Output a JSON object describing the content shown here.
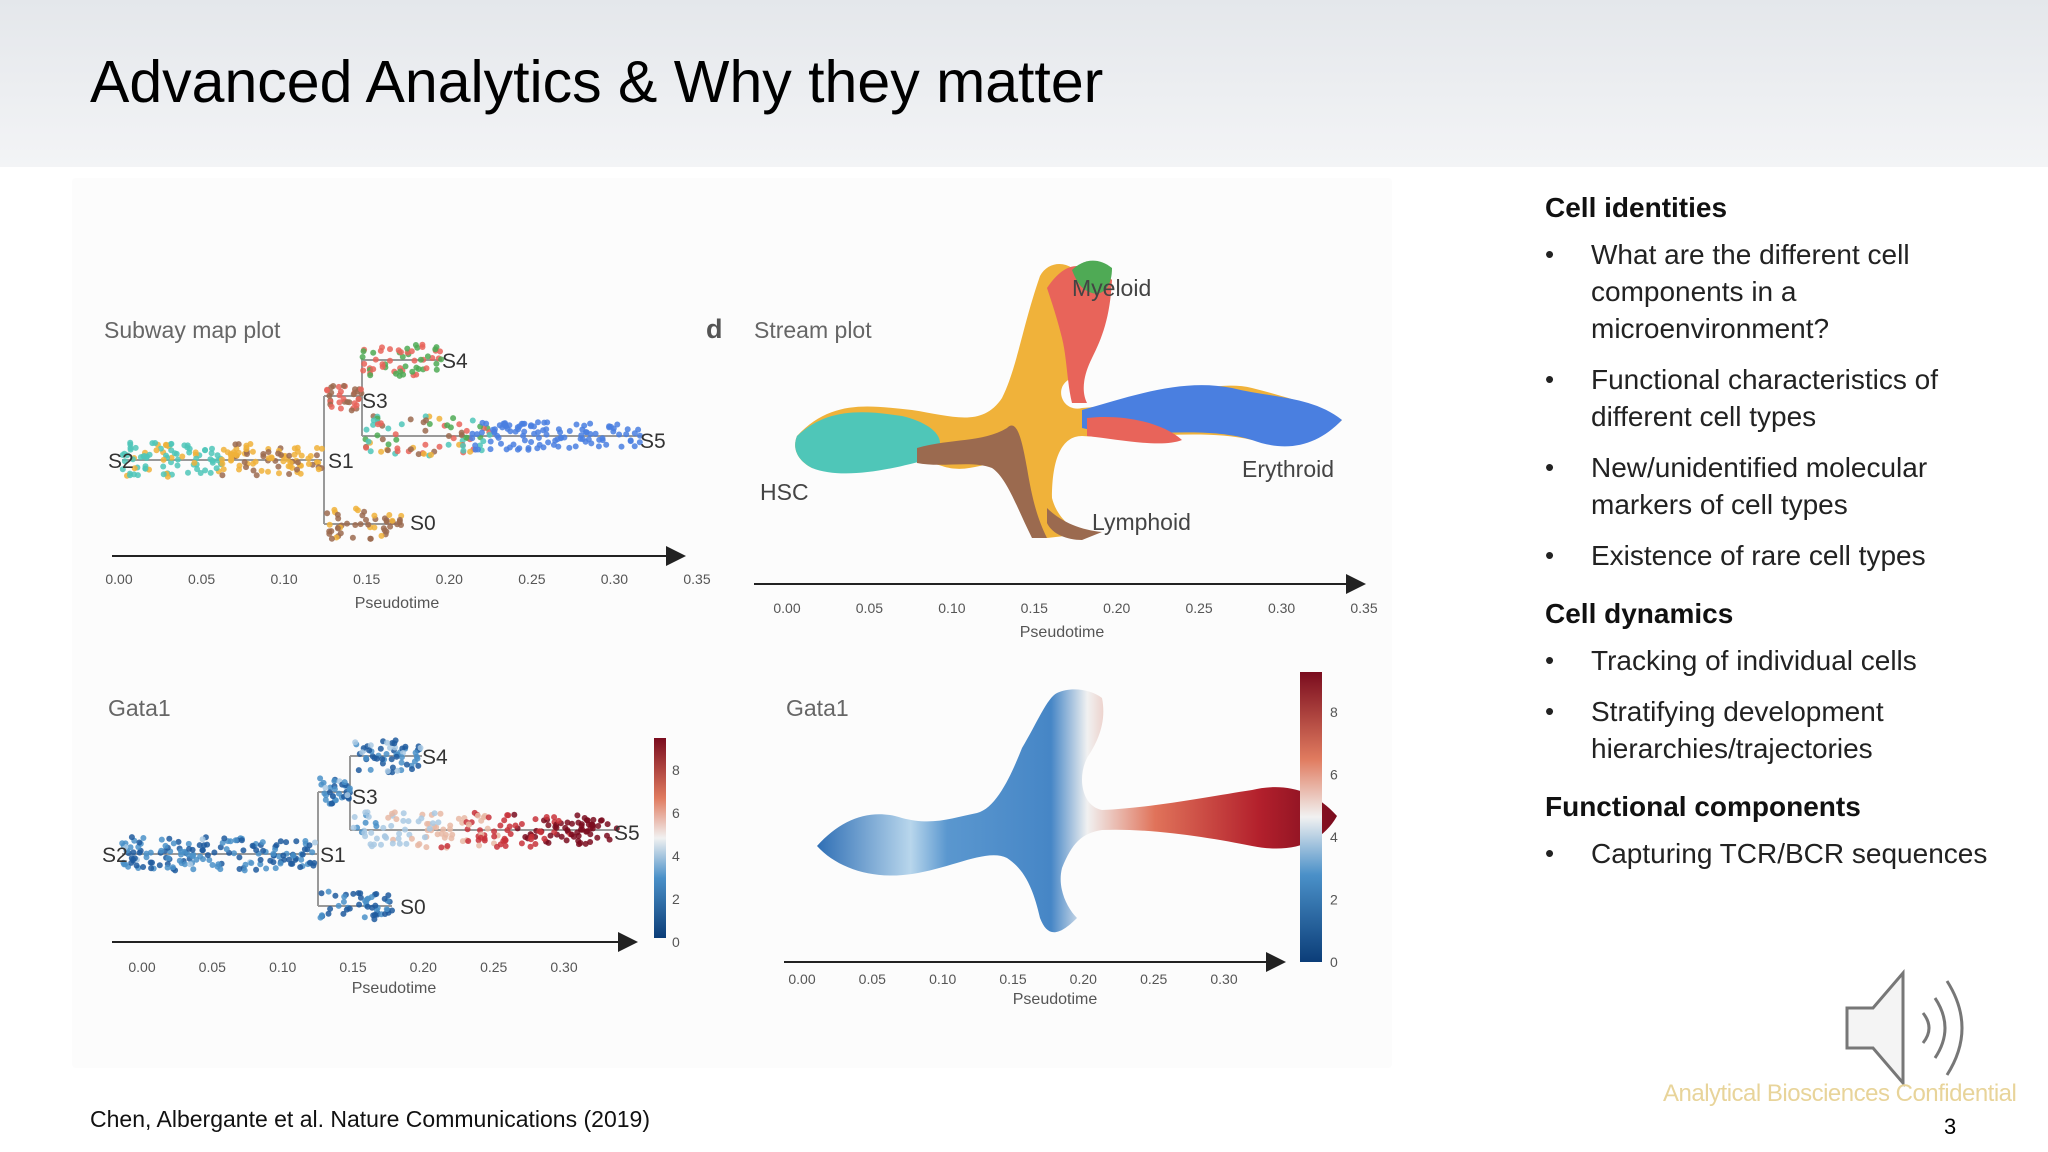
{
  "slide": {
    "title": "Advanced Analytics & Why they matter",
    "citation": "Chen, Albergante et al. Nature Communications (2019)",
    "watermark": "Analytical Biosciences Confidential",
    "page_number": "3"
  },
  "figure": {
    "subway_title": "Subway map plot",
    "stream_letter": "d",
    "stream_title": "Stream plot",
    "gata1_left_title": "Gata1",
    "gata1_right_title": "Gata1",
    "axis_label": "Pseudotime",
    "nodes": [
      "S0",
      "S1",
      "S2",
      "S3",
      "S4",
      "S5"
    ],
    "branches": {
      "myeloid": "Myeloid",
      "erythroid": "Erythroid",
      "lymphoid": "Lymphoid",
      "hsc": "HSC"
    },
    "ticks_a": [
      "0.00",
      "0.05",
      "0.10",
      "0.15",
      "0.20",
      "0.25",
      "0.30",
      "0.35"
    ],
    "ticks_c": [
      "0.00",
      "0.05",
      "0.10",
      "0.15",
      "0.20",
      "0.25",
      "0.30"
    ],
    "colorbar_ticks": [
      "0",
      "2",
      "4",
      "6",
      "8"
    ],
    "colors": {
      "teal": "#4fc6b8",
      "orange": "#f0b23a",
      "brown": "#9b6a4f",
      "red": "#e8645a",
      "green": "#4faa55",
      "blue": "#4a7fe0",
      "lowblue": "#2f6fb5",
      "highred": "#7a0c1e"
    }
  },
  "right_panel": {
    "sections": [
      {
        "heading": "Cell identities",
        "bullets": [
          "What are the different cell components in a microenvironment?",
          "Functional characteristics of different cell types",
          "New/unidentified molecular markers of cell types",
          "Existence of rare cell types"
        ]
      },
      {
        "heading": "Cell dynamics",
        "bullets": [
          "Tracking of individual cells",
          "Stratifying development hierarchies/trajectories"
        ]
      },
      {
        "heading": "Functional components",
        "bullets": [
          "Capturing TCR/BCR sequences"
        ]
      }
    ]
  },
  "icons": {
    "speaker": "speaker-icon"
  }
}
